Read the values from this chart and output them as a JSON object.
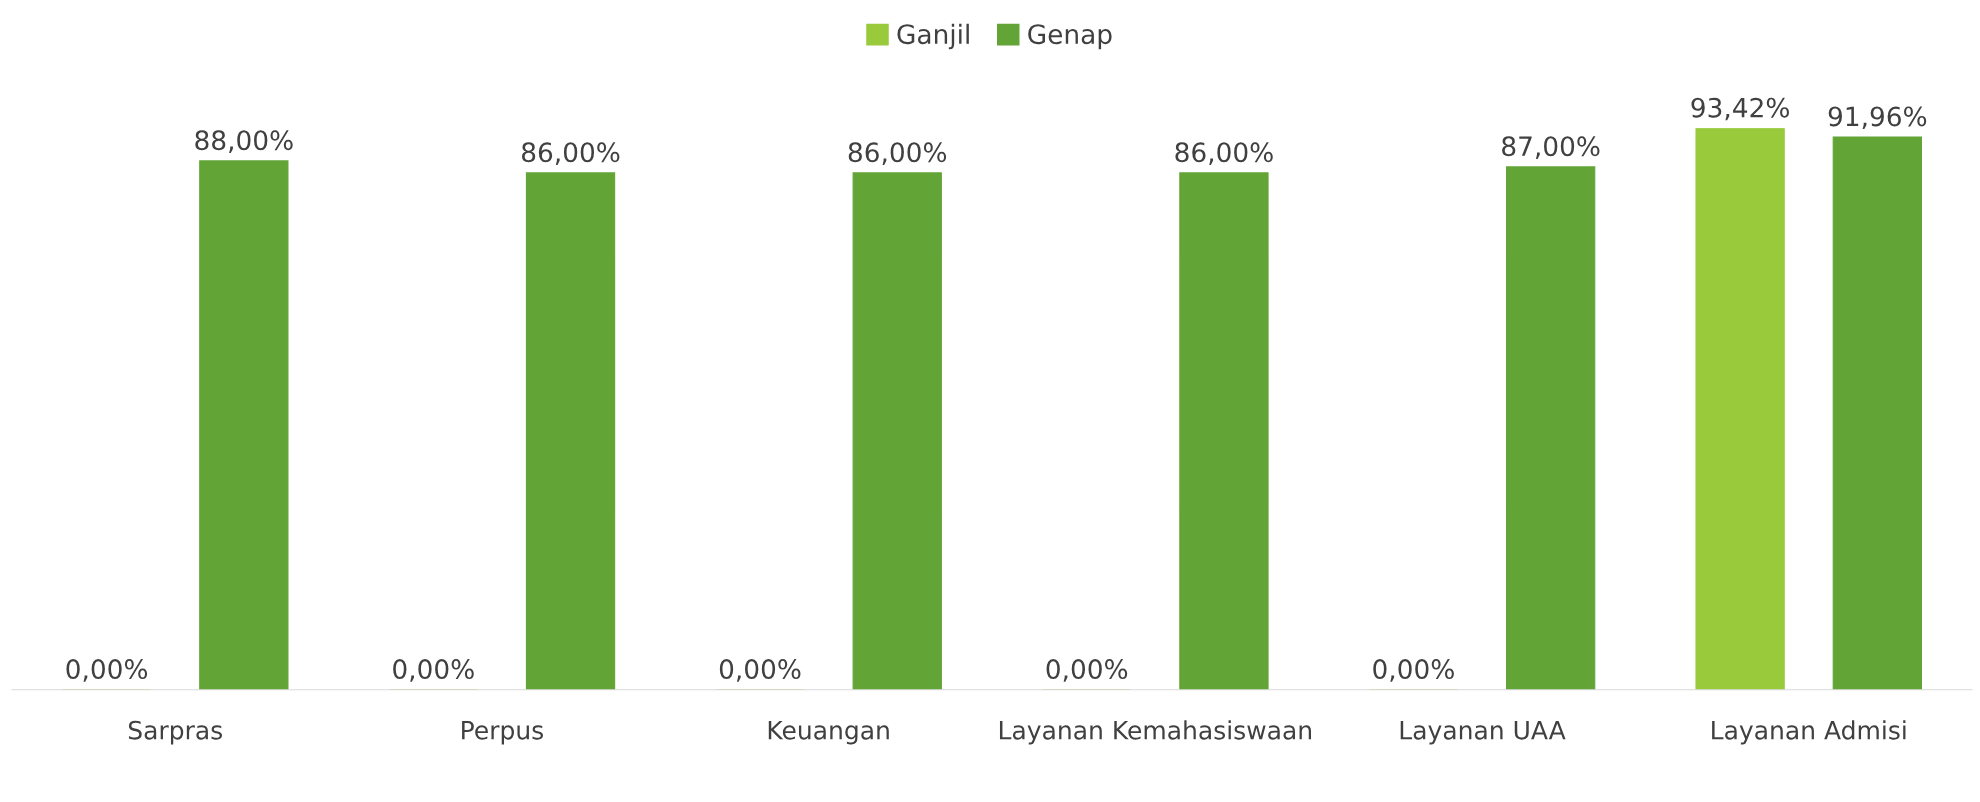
{
  "chart_data": {
    "type": "bar",
    "categories": [
      "Sarpras",
      "Perpus",
      "Keuangan",
      "Layanan Kemahasiswaan",
      "Layanan UAA",
      "Layanan Admisi"
    ],
    "series": [
      {
        "name": "Ganjil",
        "color": "#99ca3c",
        "values": [
          0,
          0,
          0,
          0,
          0,
          93.42
        ],
        "value_labels": [
          "0,00%",
          "0,00%",
          "0,00%",
          "0,00%",
          "0,00%",
          "93,42%"
        ]
      },
      {
        "name": "Genap",
        "color": "#62a536",
        "values": [
          88,
          86,
          86,
          86,
          87,
          91.96
        ],
        "value_labels": [
          "88,00%",
          "86,00%",
          "86,00%",
          "86,00%",
          "87,00%",
          "91,96%"
        ]
      }
    ],
    "legend": "top",
    "grid": false
  }
}
